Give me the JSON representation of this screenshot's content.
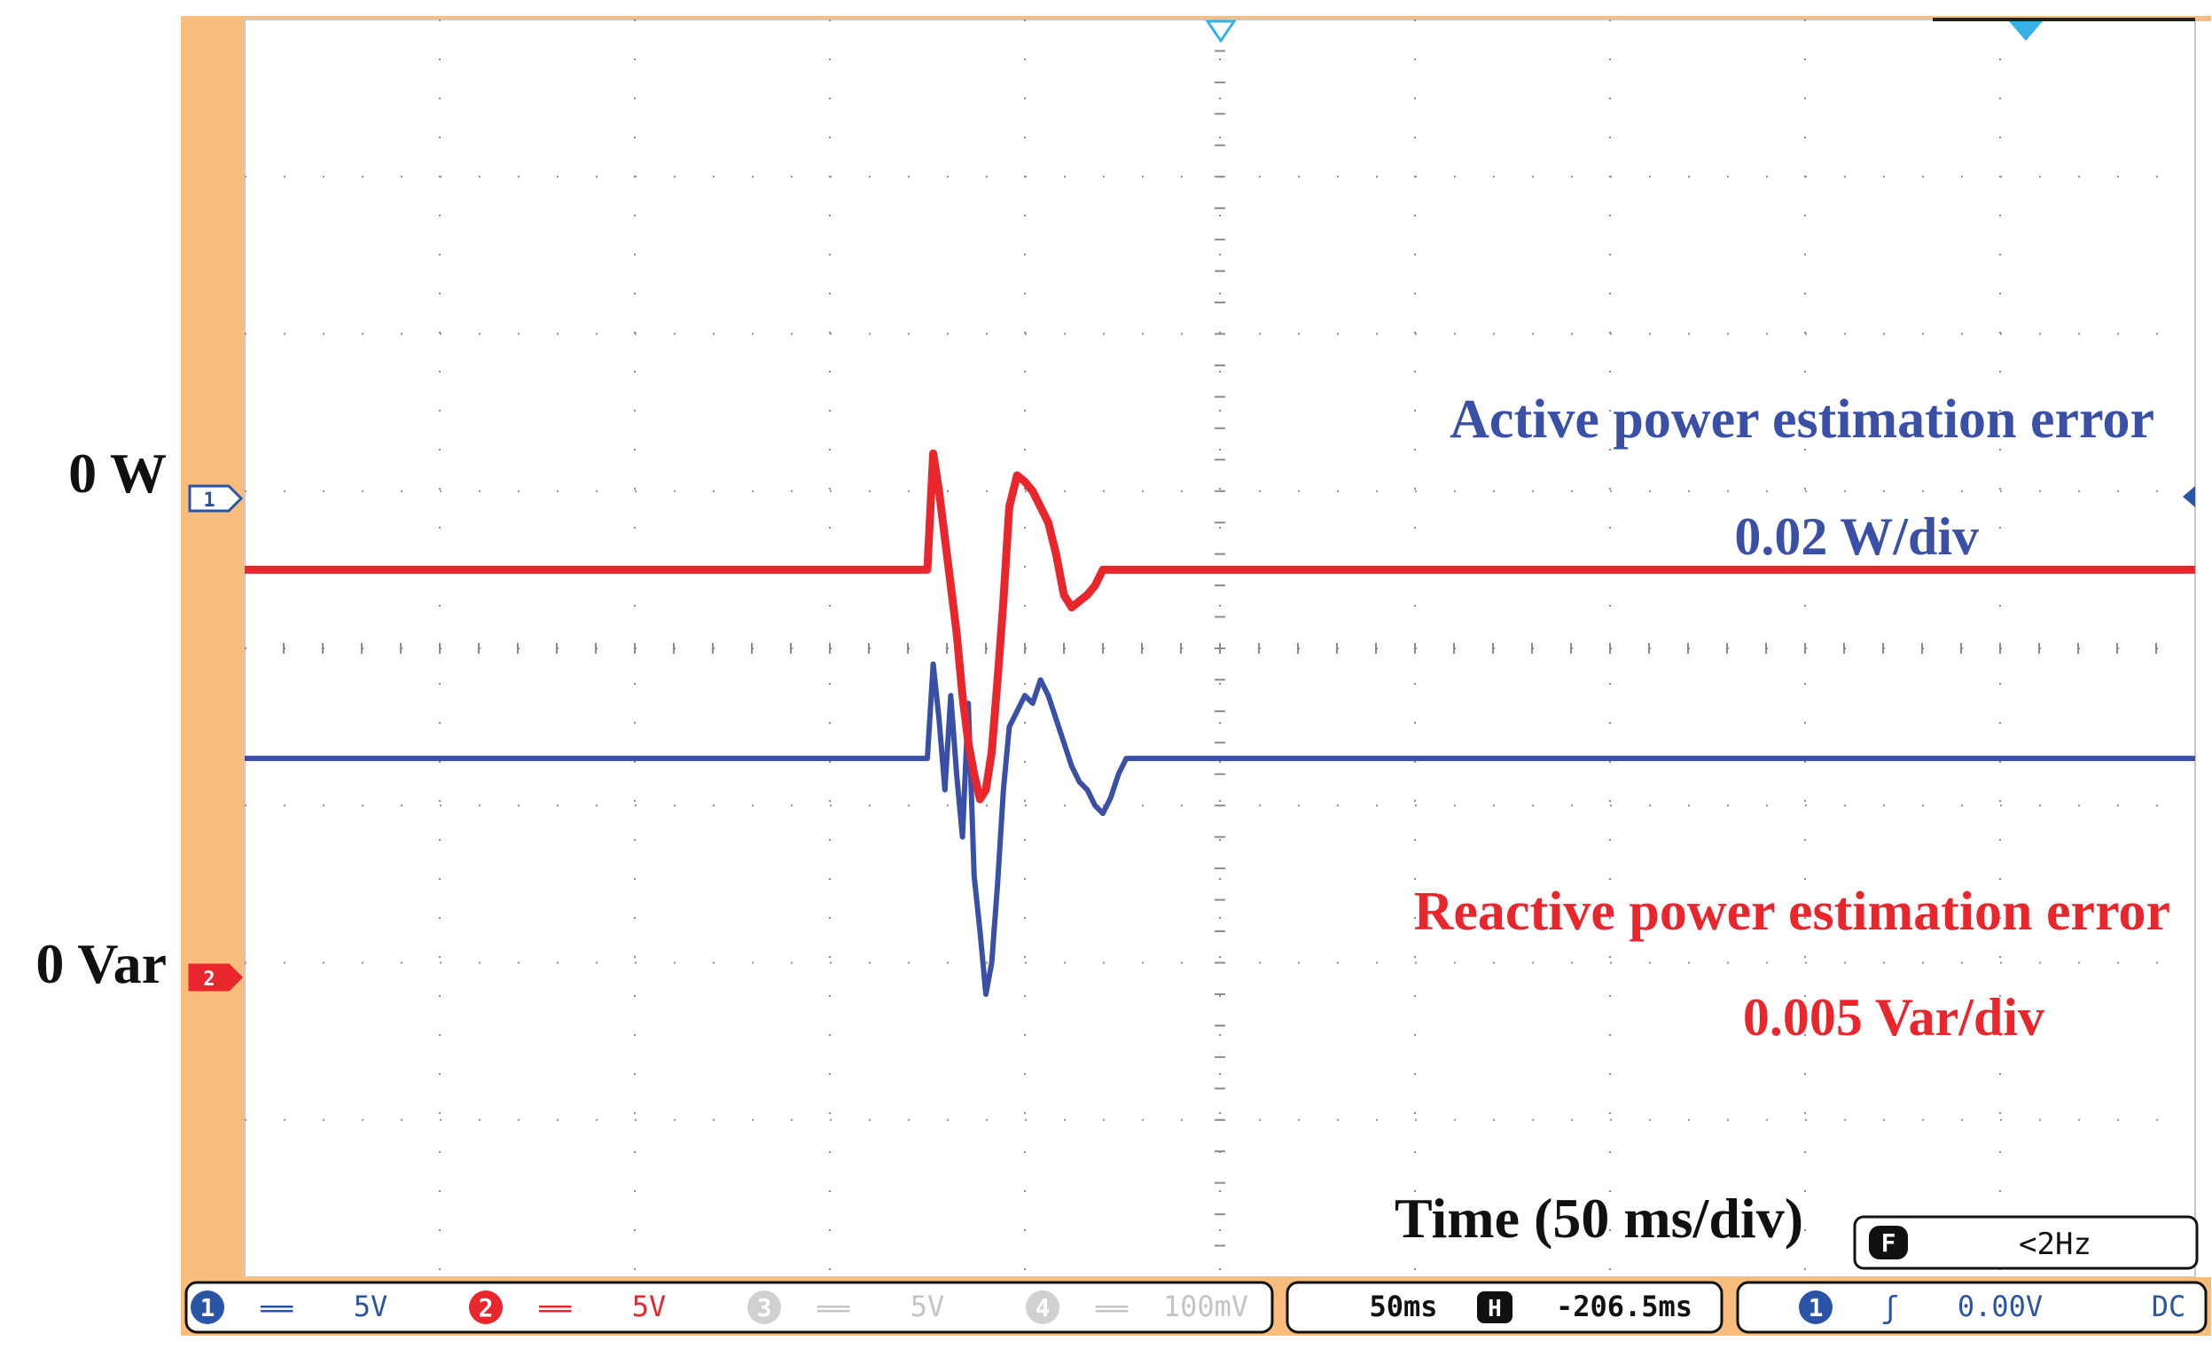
{
  "chart_data": {
    "type": "line",
    "title": "",
    "xlabel": "Time (50 ms/div)",
    "ylabel": "",
    "grid": true,
    "x_unit": "ms",
    "xlim": [
      -250,
      250
    ],
    "series": [
      {
        "name": "Active power estimation error",
        "scale_label": "0.02 W/div",
        "zero_label": "0 W",
        "channel": "1",
        "color": "#3a4fa6",
        "unit": "W",
        "ylim": [
          -0.066,
          0.094
        ],
        "x": [
          -250,
          -75.0,
          -73.5,
          -72.0,
          -70.5,
          -69.0,
          -67.5,
          -66.0,
          -64.5,
          -63.0,
          -61.5,
          -60.0,
          -58.5,
          -57.0,
          -55.5,
          -54.0,
          -52.0,
          -50.0,
          -48.0,
          -46.0,
          -44.0,
          -42.0,
          -40.0,
          -38.0,
          -36.0,
          -34.0,
          -32.0,
          -30.0,
          -28.0,
          -26.0,
          -24.0,
          -22.0,
          -20.0,
          250
        ],
        "y": [
          0,
          0,
          0.012,
          0.005,
          -0.004,
          0.008,
          -0.002,
          -0.01,
          0.007,
          -0.015,
          -0.022,
          -0.03,
          -0.026,
          -0.016,
          -0.004,
          0.004,
          0.006,
          0.008,
          0.007,
          0.01,
          0.008,
          0.005,
          0.002,
          -0.001,
          -0.003,
          -0.004,
          -0.006,
          -0.007,
          -0.005,
          -0.002,
          0.0,
          0.0,
          0.0,
          0
        ]
      },
      {
        "name": "Reactive power estimation error",
        "scale_label": "0.005 Var/div",
        "zero_label": "0 Var",
        "channel": "2",
        "color": "#e8262c",
        "unit": "Var",
        "ylim": [
          -0.0225,
          0.0175
        ],
        "x": [
          -250,
          -75.0,
          -73.5,
          -72.0,
          -70.5,
          -69.0,
          -67.5,
          -66.0,
          -64.5,
          -63.0,
          -61.5,
          -60.0,
          -58.5,
          -57.0,
          -55.5,
          -54.0,
          -52.0,
          -50.0,
          -48.0,
          -46.0,
          -44.0,
          -42.0,
          -40.0,
          -38.0,
          -36.0,
          -34.0,
          -32.0,
          -30.0,
          -28.0,
          -26.0,
          -24.0,
          -22.0,
          -20.0,
          250
        ],
        "y": [
          0,
          0,
          0.0037,
          0.0025,
          0.001,
          -0.0005,
          -0.002,
          -0.004,
          -0.0055,
          -0.0065,
          -0.0073,
          -0.007,
          -0.0058,
          -0.0035,
          -0.001,
          0.002,
          0.003,
          0.0028,
          0.0025,
          0.002,
          0.0015,
          0.0005,
          -0.0008,
          -0.0012,
          -0.001,
          -0.0008,
          -0.0005,
          0.0,
          0.0,
          0.0,
          0.0,
          0.0,
          0.0,
          0
        ]
      }
    ]
  },
  "colors": {
    "side_panel": "#f8bd7d",
    "grid": "#8a8a8a",
    "ch1": "#3a4fa6",
    "ch2": "#e8262c",
    "trigger_marker": "#36b0e6",
    "channel_marker": "#2a55a6",
    "dim": "#bfbfbf"
  },
  "icons": {
    "channel1_badge": "ch1-marker-icon",
    "channel2_badge": "ch2-marker-icon",
    "filter_badge": "filter-icon",
    "horizontal_badge": "horizontal-position-icon",
    "trigger_slope": "rising-edge-icon"
  },
  "status": {
    "filter_letter": "F",
    "filter_text": "<2Hz",
    "ch1_num": "1",
    "ch1_coupling": "══",
    "ch1_volts": "5V",
    "ch2_num": "2",
    "ch2_coupling": "══",
    "ch2_volts": "5V",
    "ch3_num": "3",
    "ch3_coupling": "══",
    "ch3_volts": "5V",
    "ch4_num": "4",
    "ch4_coupling": "══",
    "ch4_volts": "100mV",
    "timebase": "50ms",
    "h_letter": "H",
    "h_position": "-206.5ms",
    "trig_num": "1",
    "trig_slope": "ʃ",
    "trig_level": "0.00V",
    "trig_coupling": "DC"
  },
  "markers": {
    "ch1_label": "1",
    "ch2_label": "2"
  }
}
